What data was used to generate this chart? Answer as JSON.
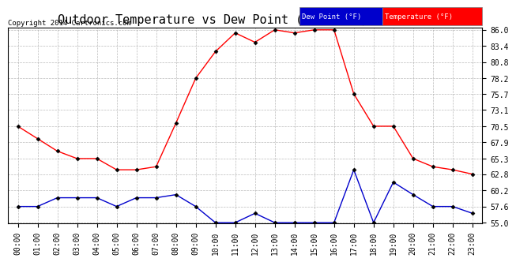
{
  "title": "Outdoor Temperature vs Dew Point (24 Hours) 20140801",
  "copyright": "Copyright 2014 Cartronics.com",
  "hours": [
    "00:00",
    "01:00",
    "02:00",
    "03:00",
    "04:00",
    "05:00",
    "06:00",
    "07:00",
    "08:00",
    "09:00",
    "10:00",
    "11:00",
    "12:00",
    "13:00",
    "14:00",
    "15:00",
    "16:00",
    "17:00",
    "18:00",
    "19:00",
    "20:00",
    "21:00",
    "22:00",
    "23:00"
  ],
  "temperature": [
    70.5,
    68.5,
    66.5,
    65.3,
    65.3,
    63.5,
    63.5,
    64.0,
    71.0,
    78.2,
    82.5,
    85.5,
    84.0,
    86.0,
    85.5,
    86.0,
    86.0,
    75.7,
    70.5,
    70.5,
    65.3,
    64.0,
    63.5,
    62.8
  ],
  "dew_point": [
    57.6,
    57.6,
    59.0,
    59.0,
    59.0,
    57.6,
    59.0,
    59.0,
    59.5,
    57.6,
    55.0,
    55.0,
    56.5,
    55.0,
    55.0,
    55.0,
    55.0,
    63.5,
    55.0,
    61.5,
    59.5,
    57.6,
    57.6,
    56.5
  ],
  "temp_color": "#ff0000",
  "dew_color": "#0000cc",
  "ylim_min": 55.0,
  "ylim_max": 86.0,
  "yticks": [
    55.0,
    57.6,
    60.2,
    62.8,
    65.3,
    67.9,
    70.5,
    73.1,
    75.7,
    78.2,
    80.8,
    83.4,
    86.0
  ],
  "bg_color": "#ffffff",
  "grid_color": "#aaaaaa",
  "legend_dew_bg": "#0000cc",
  "legend_temp_bg": "#ff0000",
  "marker": "D",
  "marker_size": 2.5,
  "line_width": 1.0,
  "title_fontsize": 11,
  "tick_fontsize": 7,
  "axis_bg": "#ffffff"
}
